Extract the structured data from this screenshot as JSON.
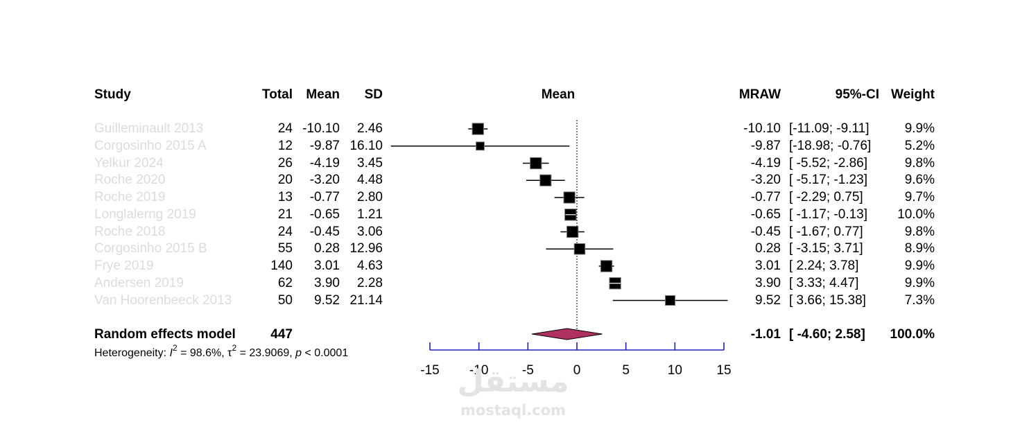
{
  "chart_data": {
    "type": "forest",
    "columns": {
      "study": "Study",
      "total": "Total",
      "mean": "Mean",
      "sd": "SD",
      "plot": "Mean",
      "effect": "MRAW",
      "ci": "95%-CI",
      "weight": "Weight"
    },
    "studies": [
      {
        "study": "Guilleminault 2013",
        "total": "24",
        "mean": "-10.10",
        "sd": "2.46",
        "effect": "-10.10",
        "ci": "[-11.09; -9.11]",
        "weight": "9.9%",
        "est": -10.1,
        "lo": -11.09,
        "hi": -9.11,
        "w": 9.9
      },
      {
        "study": "Corgosinho 2015 A",
        "total": "12",
        "mean": "-9.87",
        "sd": "16.10",
        "effect": "-9.87",
        "ci": "[-18.98; -0.76]",
        "weight": "5.2%",
        "est": -9.87,
        "lo": -18.98,
        "hi": -0.76,
        "w": 5.2
      },
      {
        "study": "Yelkur 2024",
        "total": "26",
        "mean": "-4.19",
        "sd": "3.45",
        "effect": "-4.19",
        "ci": "[ -5.52; -2.86]",
        "weight": "9.8%",
        "est": -4.19,
        "lo": -5.52,
        "hi": -2.86,
        "w": 9.8
      },
      {
        "study": "Roche 2020",
        "total": "20",
        "mean": "-3.20",
        "sd": "4.48",
        "effect": "-3.20",
        "ci": "[ -5.17; -1.23]",
        "weight": "9.6%",
        "est": -3.2,
        "lo": -5.17,
        "hi": -1.23,
        "w": 9.6
      },
      {
        "study": "Roche 2019",
        "total": "13",
        "mean": "-0.77",
        "sd": "2.80",
        "effect": "-0.77",
        "ci": "[ -2.29; 0.75]",
        "weight": "9.7%",
        "est": -0.77,
        "lo": -2.29,
        "hi": 0.75,
        "w": 9.7
      },
      {
        "study": "Longlalerng 2019",
        "total": "21",
        "mean": "-0.65",
        "sd": "1.21",
        "effect": "-0.65",
        "ci": "[ -1.17; -0.13]",
        "weight": "10.0%",
        "est": -0.65,
        "lo": -1.17,
        "hi": -0.13,
        "w": 10.0
      },
      {
        "study": "Roche 2018",
        "total": "24",
        "mean": "-0.45",
        "sd": "3.06",
        "effect": "-0.45",
        "ci": "[ -1.67; 0.77]",
        "weight": "9.8%",
        "est": -0.45,
        "lo": -1.67,
        "hi": 0.77,
        "w": 9.8
      },
      {
        "study": "Corgosinho 2015 B",
        "total": "55",
        "mean": "0.28",
        "sd": "12.96",
        "effect": "0.28",
        "ci": "[ -3.15; 3.71]",
        "weight": "8.9%",
        "est": 0.28,
        "lo": -3.15,
        "hi": 3.71,
        "w": 8.9
      },
      {
        "study": "Frye 2019",
        "total": "140",
        "mean": "3.01",
        "sd": "4.63",
        "effect": "3.01",
        "ci": "[ 2.24; 3.78]",
        "weight": "9.9%",
        "est": 3.01,
        "lo": 2.24,
        "hi": 3.78,
        "w": 9.9
      },
      {
        "study": "Andersen 2019",
        "total": "62",
        "mean": "3.90",
        "sd": "2.28",
        "effect": "3.90",
        "ci": "[ 3.33; 4.47]",
        "weight": "9.9%",
        "est": 3.9,
        "lo": 3.33,
        "hi": 4.47,
        "w": 9.9
      },
      {
        "study": "Van Hoorenbeeck 2013",
        "total": "50",
        "mean": "9.52",
        "sd": "21.14",
        "effect": "9.52",
        "ci": "[ 3.66; 15.38]",
        "weight": "7.3%",
        "est": 9.52,
        "lo": 3.66,
        "hi": 15.38,
        "w": 7.3
      }
    ],
    "summary": {
      "label": "Random effects model",
      "total": "447",
      "effect": "-1.01",
      "ci": "[ -4.60; 2.58]",
      "weight": "100.0%",
      "est": -1.01,
      "lo": -4.6,
      "hi": 2.58
    },
    "heterogeneity": {
      "prefix": "Heterogeneity: ",
      "i2_symbol": "I",
      "i2_text": " = 98.6%, ",
      "tau2_symbol": "τ",
      "tau2_text": " = 23.9069, ",
      "p_symbol": "p",
      "p_text": " < 0.0001"
    },
    "x_axis": {
      "range": [
        -15,
        15
      ],
      "ticks": [
        -15,
        -10,
        -5,
        0,
        5,
        10,
        15
      ],
      "tick_labels": [
        "-15",
        "-10",
        "-5",
        "0",
        "5",
        "10",
        "15"
      ],
      "color": "#1f1fbf"
    },
    "reference_line": 0,
    "colors": {
      "marker": "#000000",
      "diamond": "#b03060",
      "study_label": "#dcdcdc"
    }
  },
  "watermark": {
    "arabic": "مستقل",
    "latin": "mostaql.com"
  }
}
